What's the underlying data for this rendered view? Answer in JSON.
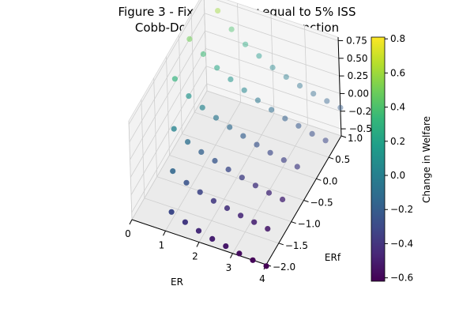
{
  "figure": {
    "title_line1": "Figure 3 - Fixed transfer equal to 5% ISS",
    "title_line2": "Cobb-Douglas Production Function"
  },
  "chart_data": {
    "type": "scatter",
    "projection": "3d",
    "xlabel": "ER",
    "ylabel": "ERf",
    "zlabel": "",
    "xlim": [
      0,
      4
    ],
    "ylim": [
      -2.0,
      1.0
    ],
    "zlim": [
      -0.6,
      0.8
    ],
    "x_ticks": [
      "0",
      "1",
      "2",
      "3",
      "4"
    ],
    "y_ticks": [
      "−2.0",
      "−1.5",
      "−1.0",
      "−0.5",
      "0.0",
      "0.5",
      "1.0"
    ],
    "z_ticks": [
      "−0.50",
      "−0.25",
      "0.00",
      "0.25",
      "0.50",
      "0.75"
    ],
    "grid": true,
    "colormap": "viridis",
    "colorbar": {
      "label": "Change in Welfare",
      "range": [
        -0.62,
        0.81
      ],
      "ticks": [
        "−0.6",
        "−0.4",
        "−0.2",
        "0.0",
        "0.2",
        "0.4",
        "0.6",
        "0.8"
      ]
    },
    "points": [
      {
        "x": 0.0,
        "y": 1.0,
        "z": 0.8
      },
      {
        "x": 0.4,
        "y": 1.0,
        "z": 0.6
      },
      {
        "x": 0.8,
        "y": 1.0,
        "z": 0.4
      },
      {
        "x": 1.2,
        "y": 1.0,
        "z": 0.25
      },
      {
        "x": 1.6,
        "y": 1.0,
        "z": 0.15
      },
      {
        "x": 2.0,
        "y": 1.0,
        "z": 0.05
      },
      {
        "x": 2.4,
        "y": 1.0,
        "z": -0.02
      },
      {
        "x": 2.8,
        "y": 1.0,
        "z": -0.08
      },
      {
        "x": 3.2,
        "y": 1.0,
        "z": -0.13
      },
      {
        "x": 3.6,
        "y": 1.0,
        "z": -0.17
      },
      {
        "x": 4.0,
        "y": 1.0,
        "z": -0.2
      },
      {
        "x": 0.0,
        "y": 0.4,
        "z": 0.5
      },
      {
        "x": 0.4,
        "y": 0.4,
        "z": 0.35
      },
      {
        "x": 0.8,
        "y": 0.4,
        "z": 0.22
      },
      {
        "x": 1.2,
        "y": 0.4,
        "z": 0.12
      },
      {
        "x": 1.6,
        "y": 0.4,
        "z": 0.03
      },
      {
        "x": 2.0,
        "y": 0.4,
        "z": -0.05
      },
      {
        "x": 2.4,
        "y": 0.4,
        "z": -0.12
      },
      {
        "x": 2.8,
        "y": 0.4,
        "z": -0.18
      },
      {
        "x": 3.2,
        "y": 0.4,
        "z": -0.22
      },
      {
        "x": 3.6,
        "y": 0.4,
        "z": -0.27
      },
      {
        "x": 4.0,
        "y": 0.4,
        "z": -0.3
      },
      {
        "x": 0.0,
        "y": -0.2,
        "z": 0.3
      },
      {
        "x": 0.4,
        "y": -0.2,
        "z": 0.12
      },
      {
        "x": 0.8,
        "y": -0.2,
        "z": 0.02
      },
      {
        "x": 1.2,
        "y": -0.2,
        "z": -0.06
      },
      {
        "x": 1.6,
        "y": -0.2,
        "z": -0.13
      },
      {
        "x": 2.0,
        "y": -0.2,
        "z": -0.19
      },
      {
        "x": 2.4,
        "y": -0.2,
        "z": -0.25
      },
      {
        "x": 2.8,
        "y": -0.2,
        "z": -0.3
      },
      {
        "x": 3.2,
        "y": -0.2,
        "z": -0.34
      },
      {
        "x": 3.6,
        "y": -0.2,
        "z": -0.37
      },
      {
        "x": 0.4,
        "y": -0.8,
        "z": 0.02
      },
      {
        "x": 0.8,
        "y": -0.8,
        "z": -0.1
      },
      {
        "x": 1.2,
        "y": -0.8,
        "z": -0.18
      },
      {
        "x": 1.6,
        "y": -0.8,
        "z": -0.24
      },
      {
        "x": 2.0,
        "y": -0.8,
        "z": -0.3
      },
      {
        "x": 2.4,
        "y": -0.8,
        "z": -0.35
      },
      {
        "x": 2.8,
        "y": -0.8,
        "z": -0.4
      },
      {
        "x": 3.2,
        "y": -0.8,
        "z": -0.44
      },
      {
        "x": 3.6,
        "y": -0.8,
        "z": -0.47
      },
      {
        "x": 0.8,
        "y": -1.4,
        "z": -0.15
      },
      {
        "x": 1.2,
        "y": -1.4,
        "z": -0.25
      },
      {
        "x": 1.6,
        "y": -1.4,
        "z": -0.32
      },
      {
        "x": 2.0,
        "y": -1.4,
        "z": -0.38
      },
      {
        "x": 2.4,
        "y": -1.4,
        "z": -0.42
      },
      {
        "x": 2.8,
        "y": -1.4,
        "z": -0.46
      },
      {
        "x": 3.2,
        "y": -1.4,
        "z": -0.49
      },
      {
        "x": 3.6,
        "y": -1.4,
        "z": -0.52
      },
      {
        "x": 1.2,
        "y": -2.0,
        "z": -0.3
      },
      {
        "x": 1.6,
        "y": -2.0,
        "z": -0.38
      },
      {
        "x": 2.0,
        "y": -2.0,
        "z": -0.44
      },
      {
        "x": 2.4,
        "y": -2.0,
        "z": -0.49
      },
      {
        "x": 2.8,
        "y": -2.0,
        "z": -0.53
      },
      {
        "x": 3.2,
        "y": -2.0,
        "z": -0.57
      },
      {
        "x": 3.6,
        "y": -2.0,
        "z": -0.6
      },
      {
        "x": 4.0,
        "y": -2.0,
        "z": -0.62
      }
    ]
  }
}
